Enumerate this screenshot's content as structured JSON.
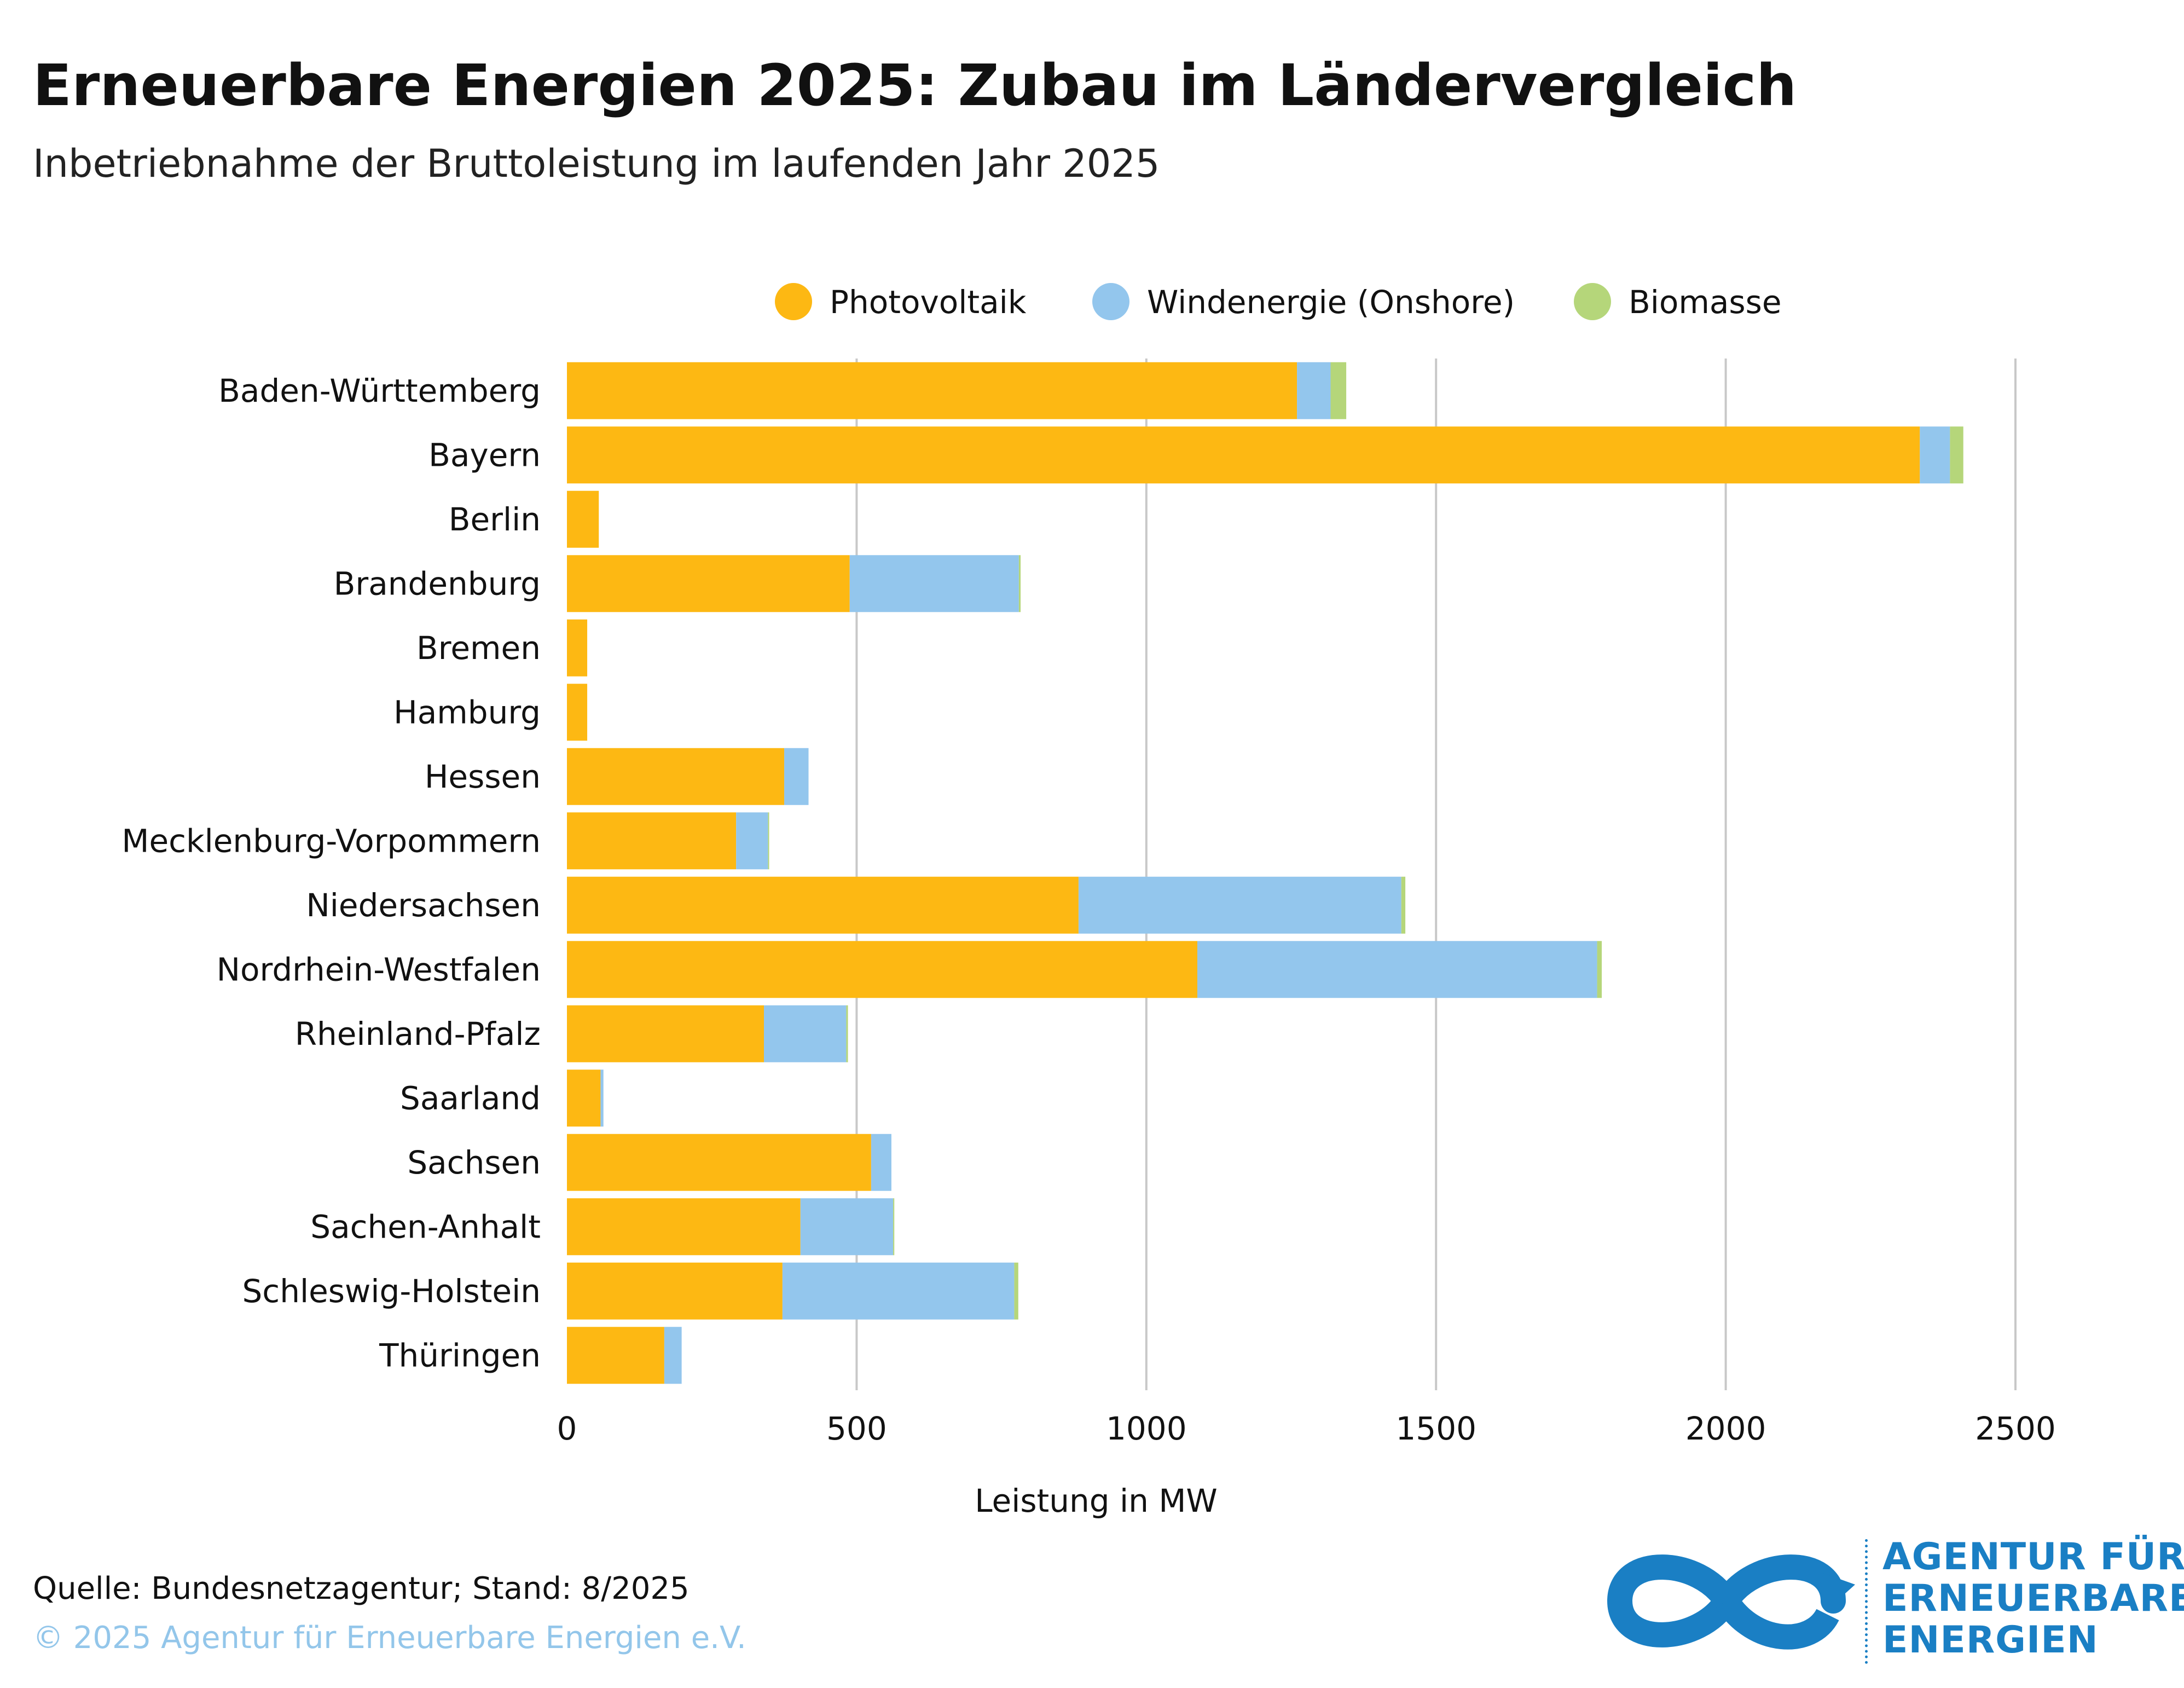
{
  "title": "Erneuerbare Energien 2025: Zubau im Ländervergleich",
  "subtitle": "Inbetriebnahme der Bruttoleistung im laufenden Jahr 2025",
  "source": "Quelle: Bundesnetzagentur; Stand: 8/2025",
  "copyright": "© 2025 Agentur für Erneuerbare Energien e.V.",
  "logo": {
    "lines": [
      "AGENTUR FÜR",
      "ERNEUERBARE",
      "ENERGIEN"
    ],
    "color": "#1a7fc4"
  },
  "chart_data": {
    "type": "bar",
    "orientation": "horizontal",
    "stacked": true,
    "categories": [
      "Baden-Württemberg",
      "Bayern",
      "Berlin",
      "Brandenburg",
      "Bremen",
      "Hamburg",
      "Hessen",
      "Mecklenburg-Vorpommern",
      "Niedersachsen",
      "Nordrhein-Westfalen",
      "Rheinland-Pfalz",
      "Saarland",
      "Sachsen",
      "Sachen-Anhalt",
      "Schleswig-Holstein",
      "Thüringen"
    ],
    "series": [
      {
        "name": "Photovoltaik",
        "color": "#fdb813",
        "values": [
          1260,
          2335,
          55,
          488,
          35,
          35,
          375,
          292,
          883,
          1088,
          340,
          58,
          525,
          403,
          372,
          168
        ]
      },
      {
        "name": "Windenergie (Onshore)",
        "color": "#93c6ed",
        "values": [
          58,
          52,
          0,
          292,
          0,
          0,
          42,
          55,
          557,
          690,
          142,
          5,
          35,
          160,
          400,
          30
        ]
      },
      {
        "name": "Biomasse",
        "color": "#b5d67a",
        "values": [
          27,
          23,
          0,
          3,
          0,
          0,
          0,
          2,
          7,
          8,
          3,
          0,
          0,
          2,
          7,
          0
        ]
      }
    ],
    "xlabel": "Leistung in MW",
    "ylabel": "",
    "xlim": [
      0,
      2500
    ],
    "xticks": [
      0,
      500,
      1000,
      1500,
      2000,
      2500
    ],
    "grid": "vertical",
    "legend": "top"
  }
}
